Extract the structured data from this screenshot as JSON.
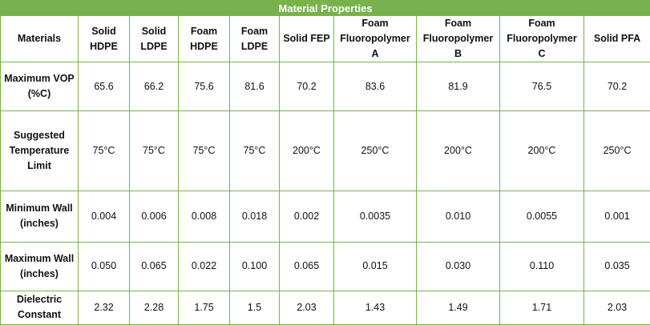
{
  "table": {
    "title": "Material Properties",
    "columns": [
      "Materials",
      "Solid HDPE",
      "Solid LDPE",
      "Foam HDPE",
      "Foam LDPE",
      "Solid FEP",
      "Foam Fluoropolymer A",
      "Foam Fluoropolymer B",
      "Foam Fluoropolymer C",
      "Solid PFA"
    ],
    "rows": [
      {
        "label": "Maximum VOP (%C)",
        "values": [
          "65.6",
          "66.2",
          "75.6",
          "81.6",
          "70.2",
          "83.6",
          "81.9",
          "76.5",
          "70.2"
        ]
      },
      {
        "label": "Suggested Temperature Limit",
        "values": [
          "75°C",
          "75°C",
          "75°C",
          "75°C",
          "200°C",
          "250°C",
          "200°C",
          "200°C",
          "250°C"
        ]
      },
      {
        "label": "Minimum Wall (inches)",
        "values": [
          "0.004",
          "0.006",
          "0.008",
          "0.018",
          "0.002",
          "0.0035",
          "0.010",
          "0.0055",
          "0.001"
        ]
      },
      {
        "label": "Maximum Wall (inches)",
        "values": [
          "0.050",
          "0.065",
          "0.022",
          "0.100",
          "0.065",
          "0.015",
          "0.030",
          "0.110",
          "0.035"
        ]
      },
      {
        "label": "Dielectric Constant",
        "values": [
          "2.32",
          "2.28",
          "1.75",
          "1.5",
          "2.03",
          "1.43",
          "1.49",
          "1.71",
          "2.03"
        ]
      }
    ],
    "colors": {
      "accent": "#79b24d",
      "title_text": "#ffffff",
      "text": "#111111"
    }
  }
}
